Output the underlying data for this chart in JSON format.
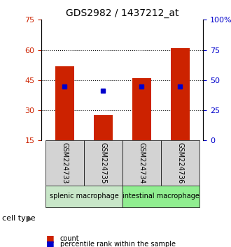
{
  "title": "GDS2982 / 1437212_at",
  "samples": [
    "GSM224733",
    "GSM224735",
    "GSM224734",
    "GSM224736"
  ],
  "bar_values": [
    52,
    27.5,
    46,
    61
  ],
  "percentile_values": [
    45,
    41,
    45,
    45
  ],
  "bar_color": "#cc2200",
  "percentile_color": "#0000cc",
  "ylim_left": [
    15,
    75
  ],
  "ylim_right": [
    0,
    100
  ],
  "yticks_left": [
    15,
    30,
    45,
    60,
    75
  ],
  "yticks_right": [
    0,
    25,
    50,
    75,
    100
  ],
  "ytick_labels_right": [
    "0",
    "25",
    "50",
    "75",
    "100%"
  ],
  "gridlines": [
    30,
    45,
    60
  ],
  "groups": [
    {
      "label": "splenic macrophage",
      "indices": [
        0,
        1
      ],
      "color": "#c8e6c8"
    },
    {
      "label": "intestinal macrophage",
      "indices": [
        2,
        3
      ],
      "color": "#90ee90"
    }
  ],
  "legend_count_label": "count",
  "legend_percentile_label": "percentile rank within the sample",
  "cell_type_label": "cell type",
  "bar_width": 0.5,
  "sample_label_bg": "#d3d3d3"
}
